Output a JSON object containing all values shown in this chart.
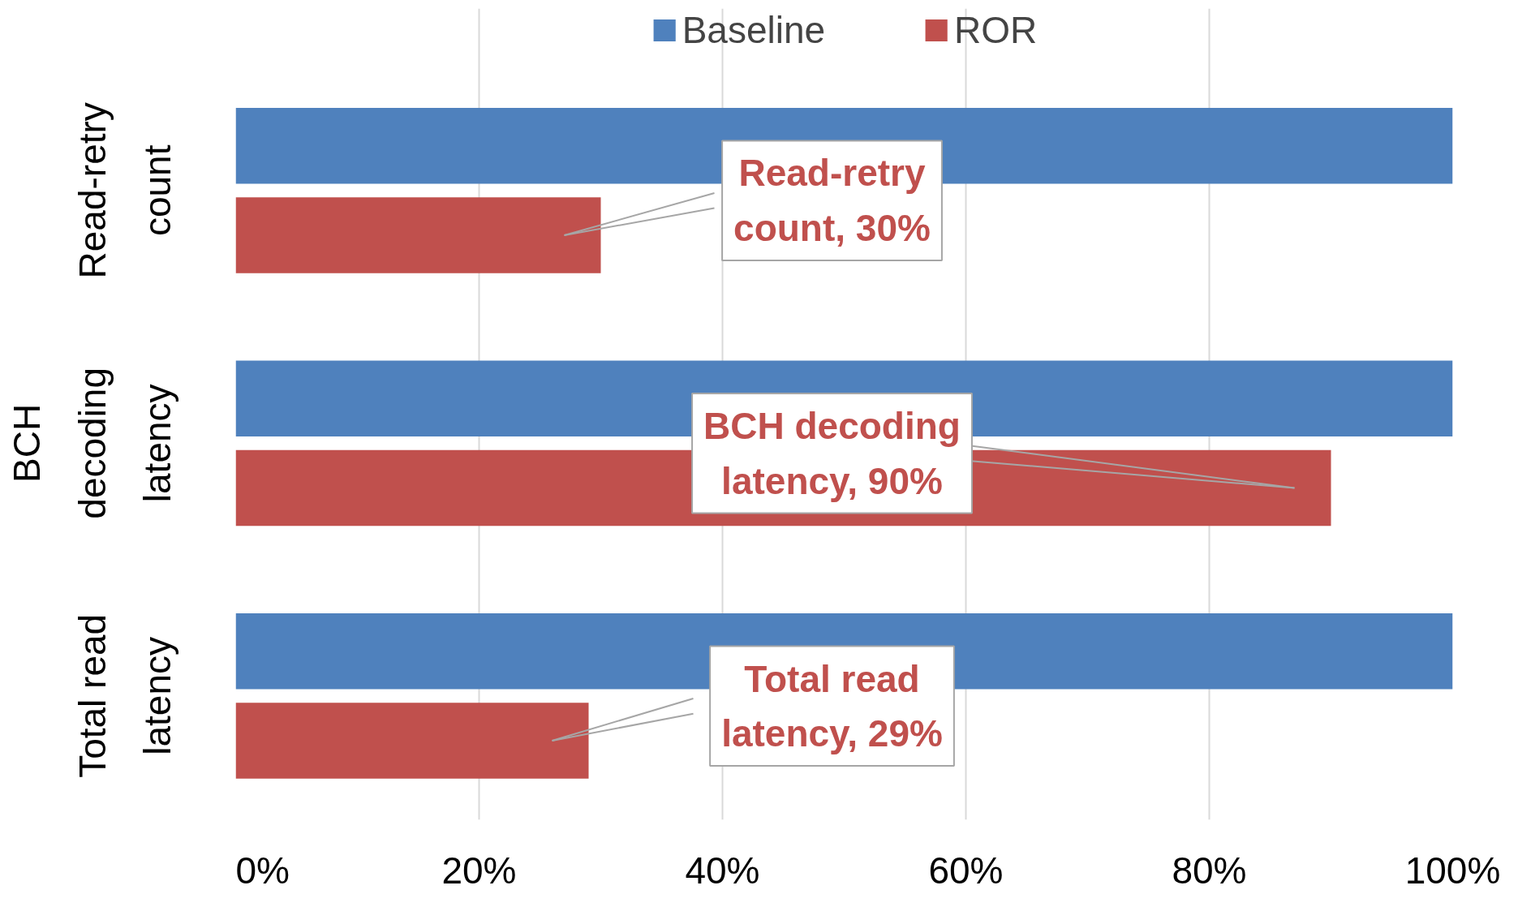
{
  "chart_data": {
    "type": "bar",
    "orientation": "horizontal",
    "categories": [
      "Read-retry\ncount",
      "BCH\ndecoding\nlatency",
      "Total read\nlatency"
    ],
    "series": [
      {
        "name": "Baseline",
        "color": "#4f81bd",
        "values": [
          100,
          100,
          100
        ]
      },
      {
        "name": "ROR",
        "color": "#c0504d",
        "values": [
          30,
          90,
          29
        ]
      }
    ],
    "xlim": [
      0,
      100
    ],
    "xticks": [
      {
        "value": 0,
        "label": "0%"
      },
      {
        "value": 20,
        "label": "20%"
      },
      {
        "value": 40,
        "label": "40%"
      },
      {
        "value": 60,
        "label": "60%"
      },
      {
        "value": 80,
        "label": "80%"
      },
      {
        "value": 100,
        "label": "100%"
      }
    ],
    "grid": "x",
    "legend": "top",
    "annotations": [
      "Read-retry\ncount, 30%",
      "BCH decoding\nlatency, 90%",
      "Total read\nlatency, 29%"
    ]
  }
}
